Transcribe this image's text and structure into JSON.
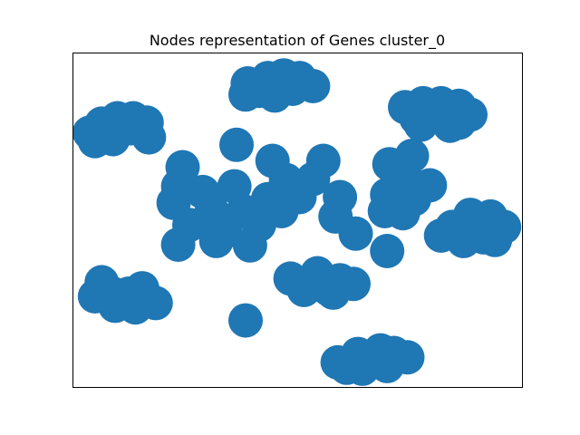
{
  "chart_data": {
    "type": "scatter",
    "title": "Nodes representation of Genes cluster_0",
    "xlabel": "",
    "ylabel": "",
    "axes_visible": false,
    "grid": false,
    "legend": "none",
    "xlim": [
      0,
      100
    ],
    "ylim": [
      0,
      100
    ],
    "node_color": "#1f77b4",
    "series": [
      {
        "points": [
          {
            "x": 39.0,
            "y": 90.8
          },
          {
            "x": 43.5,
            "y": 92.4
          },
          {
            "x": 47.0,
            "y": 93.2
          },
          {
            "x": 50.5,
            "y": 92.4
          },
          {
            "x": 53.5,
            "y": 90.0
          },
          {
            "x": 49.0,
            "y": 89.2
          },
          {
            "x": 45.0,
            "y": 89.5
          },
          {
            "x": 41.5,
            "y": 88.6
          },
          {
            "x": 38.5,
            "y": 87.5
          },
          {
            "x": 45.0,
            "y": 87.2
          },
          {
            "x": 3.8,
            "y": 76.1
          },
          {
            "x": 6.5,
            "y": 78.8
          },
          {
            "x": 10.0,
            "y": 80.4
          },
          {
            "x": 13.5,
            "y": 80.4
          },
          {
            "x": 16.5,
            "y": 79.1
          },
          {
            "x": 8.5,
            "y": 76.6
          },
          {
            "x": 13.0,
            "y": 77.4
          },
          {
            "x": 17.0,
            "y": 74.7
          },
          {
            "x": 9.0,
            "y": 74.2
          },
          {
            "x": 5.0,
            "y": 73.6
          },
          {
            "x": 74.0,
            "y": 83.7
          },
          {
            "x": 78.0,
            "y": 84.9
          },
          {
            "x": 82.0,
            "y": 84.9
          },
          {
            "x": 86.0,
            "y": 84.1
          },
          {
            "x": 88.5,
            "y": 81.5
          },
          {
            "x": 86.0,
            "y": 79.1
          },
          {
            "x": 80.0,
            "y": 81.5
          },
          {
            "x": 76.5,
            "y": 80.4
          },
          {
            "x": 84.0,
            "y": 78.2
          },
          {
            "x": 77.5,
            "y": 78.5
          },
          {
            "x": 36.5,
            "y": 72.5
          },
          {
            "x": 24.5,
            "y": 65.8
          },
          {
            "x": 44.5,
            "y": 67.7
          },
          {
            "x": 55.8,
            "y": 67.7
          },
          {
            "x": 22.5,
            "y": 55.2
          },
          {
            "x": 29.0,
            "y": 58.4
          },
          {
            "x": 36.0,
            "y": 60.1
          },
          {
            "x": 31.0,
            "y": 52.9
          },
          {
            "x": 38.0,
            "y": 52.7
          },
          {
            "x": 43.5,
            "y": 56.3
          },
          {
            "x": 47.5,
            "y": 62.0
          },
          {
            "x": 50.5,
            "y": 56.9
          },
          {
            "x": 26.0,
            "y": 48.6
          },
          {
            "x": 34.0,
            "y": 46.6
          },
          {
            "x": 41.5,
            "y": 48.6
          },
          {
            "x": 46.5,
            "y": 52.7
          },
          {
            "x": 23.5,
            "y": 42.7
          },
          {
            "x": 32.0,
            "y": 43.8
          },
          {
            "x": 39.5,
            "y": 42.5
          },
          {
            "x": 53.5,
            "y": 62.3
          },
          {
            "x": 59.5,
            "y": 56.9
          },
          {
            "x": 23.5,
            "y": 60.1
          },
          {
            "x": 70.5,
            "y": 66.7
          },
          {
            "x": 74.5,
            "y": 61.7
          },
          {
            "x": 70.0,
            "y": 57.6
          },
          {
            "x": 76.0,
            "y": 56.3
          },
          {
            "x": 79.5,
            "y": 60.4
          },
          {
            "x": 73.5,
            "y": 52.1
          },
          {
            "x": 69.5,
            "y": 52.7
          },
          {
            "x": 75.5,
            "y": 69.2
          },
          {
            "x": 58.5,
            "y": 51.1
          },
          {
            "x": 63.0,
            "y": 46.0
          },
          {
            "x": 70.0,
            "y": 40.8
          },
          {
            "x": 84.5,
            "y": 48.0
          },
          {
            "x": 88.5,
            "y": 51.6
          },
          {
            "x": 93.0,
            "y": 51.1
          },
          {
            "x": 96.0,
            "y": 48.0
          },
          {
            "x": 91.5,
            "y": 44.9
          },
          {
            "x": 87.0,
            "y": 43.8
          },
          {
            "x": 82.0,
            "y": 45.4
          },
          {
            "x": 94.0,
            "y": 44.1
          },
          {
            "x": 6.5,
            "y": 31.5
          },
          {
            "x": 9.0,
            "y": 28.1
          },
          {
            "x": 12.5,
            "y": 28.1
          },
          {
            "x": 15.5,
            "y": 29.7
          },
          {
            "x": 18.5,
            "y": 25.3
          },
          {
            "x": 14.0,
            "y": 24.0
          },
          {
            "x": 9.5,
            "y": 24.5
          },
          {
            "x": 5.0,
            "y": 27.3
          },
          {
            "x": 48.5,
            "y": 32.6
          },
          {
            "x": 54.5,
            "y": 34.2
          },
          {
            "x": 59.5,
            "y": 32.1
          },
          {
            "x": 62.5,
            "y": 31.0
          },
          {
            "x": 57.0,
            "y": 29.4
          },
          {
            "x": 51.5,
            "y": 29.2
          },
          {
            "x": 58.0,
            "y": 28.4
          },
          {
            "x": 38.5,
            "y": 20.1
          },
          {
            "x": 59.0,
            "y": 7.6
          },
          {
            "x": 63.5,
            "y": 10.1
          },
          {
            "x": 68.5,
            "y": 11.2
          },
          {
            "x": 71.5,
            "y": 10.4
          },
          {
            "x": 74.5,
            "y": 9.1
          },
          {
            "x": 70.0,
            "y": 6.5
          },
          {
            "x": 64.5,
            "y": 5.7
          },
          {
            "x": 61.0,
            "y": 6.0
          }
        ]
      }
    ]
  }
}
